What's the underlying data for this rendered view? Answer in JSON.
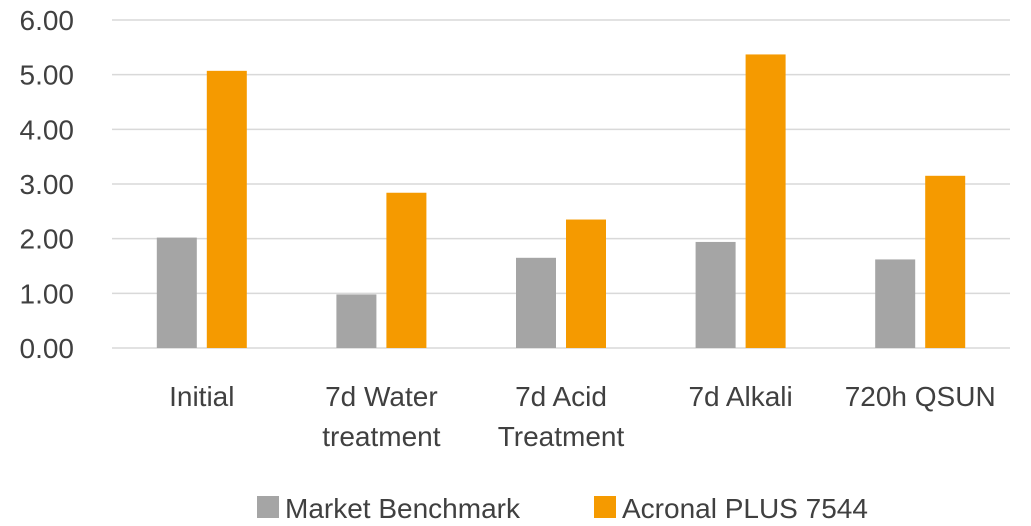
{
  "chart_data": {
    "type": "bar",
    "title": "",
    "xlabel": "",
    "ylabel": "",
    "categories": [
      [
        "Initial"
      ],
      [
        "7d Water",
        "treatment"
      ],
      [
        "7d Acid",
        "Treatment"
      ],
      [
        "7d Alkali"
      ],
      [
        "720h QSUN"
      ]
    ],
    "series": [
      {
        "name": "Market Benchmark",
        "color": "#A5A5A5",
        "values": [
          2.02,
          0.98,
          1.65,
          1.94,
          1.62
        ]
      },
      {
        "name": "Acronal PLUS 7544",
        "color": "#F59A00",
        "values": [
          5.07,
          2.84,
          2.35,
          5.37,
          3.15
        ]
      }
    ],
    "ylim": [
      0,
      6
    ],
    "yticks": [
      0,
      1,
      2,
      3,
      4,
      5,
      6
    ],
    "ytick_labels": [
      "0.00",
      "1.00",
      "2.00",
      "3.00",
      "4.00",
      "5.00",
      "6.00"
    ],
    "grid": true,
    "gridline_color": "#D9D9D9",
    "legend_position": "bottom"
  }
}
